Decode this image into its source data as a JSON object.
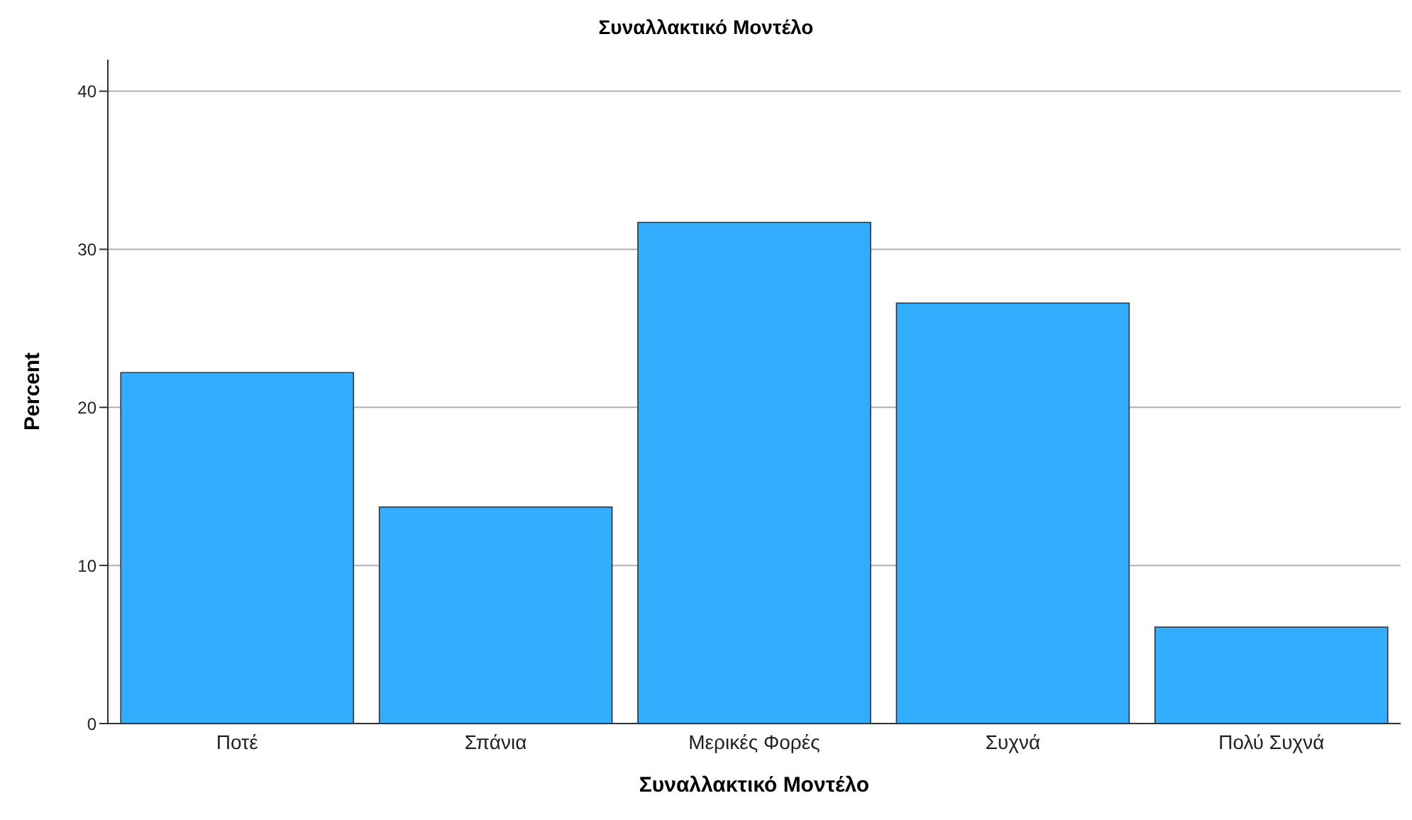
{
  "chart_data": {
    "type": "bar",
    "title": "Συναλλακτικό Μοντέλο",
    "xlabel": "Συναλλακτικό Μοντέλο",
    "ylabel": "Percent",
    "categories": [
      "Ποτέ",
      "Σπάνια",
      "Μερικές Φορές",
      "Συχνά",
      "Πολύ Συχνά"
    ],
    "values": [
      22.2,
      13.7,
      31.7,
      26.6,
      6.1
    ],
    "color": "#33adff",
    "ylim": [
      0,
      42
    ],
    "yticks": [
      0,
      10,
      20,
      30,
      40
    ],
    "grid": "y"
  }
}
